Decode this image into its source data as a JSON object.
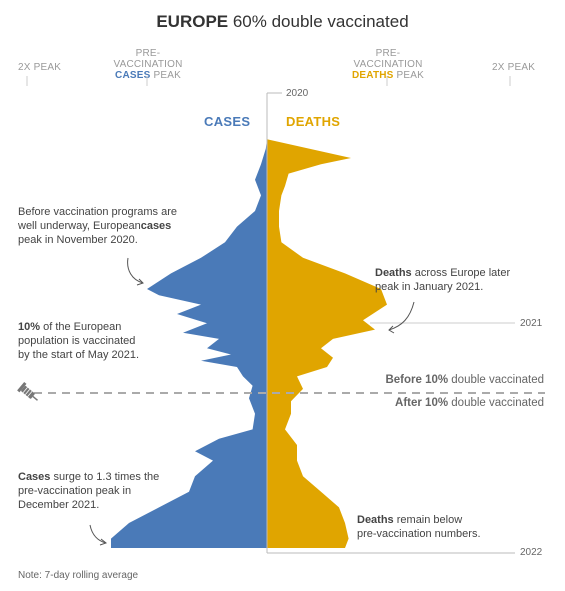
{
  "header": {
    "title_bold": "EUROPE",
    "title_rest": " 60% double vaccinated"
  },
  "scale": {
    "left_2x": "2X PEAK",
    "left_pre_line1": "PRE-VACCINATION",
    "left_pre_bold": "CASES",
    "left_pre_rest": " PEAK",
    "right_pre_line1": "PRE-VACCINATION",
    "right_pre_bold": "DEATHS",
    "right_pre_rest": " PEAK",
    "right_2x": "2X PEAK"
  },
  "labels": {
    "cases": "CASES",
    "deaths": "DEATHS",
    "year_2020": "2020",
    "year_2021": "2021",
    "year_2022": "2022"
  },
  "divider": {
    "before_bold": "Before 10%",
    "before_rest": " double vaccinated",
    "after_bold": "After 10%",
    "after_rest": " double vaccinated"
  },
  "annotations": {
    "a1_line1": "Before vaccination programs are",
    "a1_line2_pre": "well underway, European",
    "a1_line2_bold": "cases",
    "a1_line3": "peak in November 2020.",
    "a2_bold": "Deaths",
    "a2_line1_rest": " across Europe later",
    "a2_line2": "peak in January 2021.",
    "a3_bold": "10%",
    "a3_line1_rest": " of the European",
    "a3_line2": "population is vaccinated",
    "a3_line3": "by the start of May 2021.",
    "a4_bold": "Cases",
    "a4_line1_rest": " surge to 1.3 times the",
    "a4_line2": "pre-vaccination peak in",
    "a4_line3": "December 2021.",
    "a5_bold": "Deaths",
    "a5_line1_rest": " remain below",
    "a5_line2": "pre-vaccination numbers."
  },
  "footer": {
    "note": "Note: 7-day rolling average"
  },
  "colors": {
    "cases": "#4a7ab8",
    "deaths": "#e0a500",
    "axis": "#bbbbbb"
  },
  "chart_data": {
    "type": "area",
    "orientation": "vertical-mirrored",
    "units": "multiple of pre-vaccination peak",
    "y_axis_ticks": [
      "2020",
      "2021",
      "2022"
    ],
    "x_axis_ticks": [
      "2X PEAK",
      "PRE-VACCINATION PEAK",
      "PRE-VACCINATION PEAK",
      "2X PEAK"
    ],
    "xlim": [
      -2,
      2
    ],
    "series": [
      {
        "name": "CASES",
        "side": "left",
        "points": [
          [
            0,
            0
          ],
          [
            0.02,
            0
          ],
          [
            0.05,
            0.01
          ],
          [
            0.1,
            0.05
          ],
          [
            0.15,
            0.1
          ],
          [
            0.2,
            0.05
          ],
          [
            0.25,
            0.1
          ],
          [
            0.3,
            0.25
          ],
          [
            0.35,
            0.35
          ],
          [
            0.4,
            0.55
          ],
          [
            0.45,
            0.8
          ],
          [
            0.5,
            1.0
          ],
          [
            0.52,
            0.9
          ],
          [
            0.55,
            0.55
          ],
          [
            0.58,
            0.75
          ],
          [
            0.61,
            0.5
          ],
          [
            0.64,
            0.7
          ],
          [
            0.66,
            0.4
          ],
          [
            0.69,
            0.5
          ],
          [
            0.71,
            0.3
          ],
          [
            0.73,
            0.55
          ],
          [
            0.75,
            0.25
          ],
          [
            0.78,
            0.2
          ],
          [
            0.81,
            0.12
          ],
          [
            0.85,
            0.15
          ],
          [
            0.9,
            0.1
          ],
          [
            0.95,
            0.12
          ],
          [
            0.98,
            0.4
          ],
          [
            1.02,
            0.6
          ],
          [
            1.05,
            0.45
          ],
          [
            1.1,
            0.6
          ],
          [
            1.15,
            0.65
          ],
          [
            1.2,
            0.9
          ],
          [
            1.25,
            1.15
          ],
          [
            1.3,
            1.3
          ],
          [
            1.33,
            1.3
          ]
        ]
      },
      {
        "name": "DEATHS",
        "side": "right",
        "points": [
          [
            0,
            0
          ],
          [
            0.02,
            0
          ],
          [
            0.05,
            0.35
          ],
          [
            0.08,
            0.7
          ],
          [
            0.1,
            0.45
          ],
          [
            0.13,
            0.18
          ],
          [
            0.17,
            0.15
          ],
          [
            0.2,
            0.12
          ],
          [
            0.25,
            0.1
          ],
          [
            0.3,
            0.1
          ],
          [
            0.35,
            0.12
          ],
          [
            0.4,
            0.3
          ],
          [
            0.45,
            0.65
          ],
          [
            0.5,
            0.95
          ],
          [
            0.55,
            1.0
          ],
          [
            0.6,
            0.8
          ],
          [
            0.63,
            0.9
          ],
          [
            0.66,
            0.55
          ],
          [
            0.69,
            0.45
          ],
          [
            0.72,
            0.55
          ],
          [
            0.75,
            0.5
          ],
          [
            0.78,
            0.25
          ],
          [
            0.82,
            0.3
          ],
          [
            0.86,
            0.2
          ],
          [
            0.9,
            0.2
          ],
          [
            0.95,
            0.15
          ],
          [
            1.0,
            0.25
          ],
          [
            1.05,
            0.25
          ],
          [
            1.1,
            0.3
          ],
          [
            1.15,
            0.45
          ],
          [
            1.2,
            0.6
          ],
          [
            1.25,
            0.65
          ],
          [
            1.3,
            0.68
          ],
          [
            1.33,
            0.65
          ]
        ]
      }
    ],
    "markers": [
      {
        "label": "Before 10% double vaccinated / After 10% double vaccinated",
        "t": 0.88
      }
    ]
  }
}
